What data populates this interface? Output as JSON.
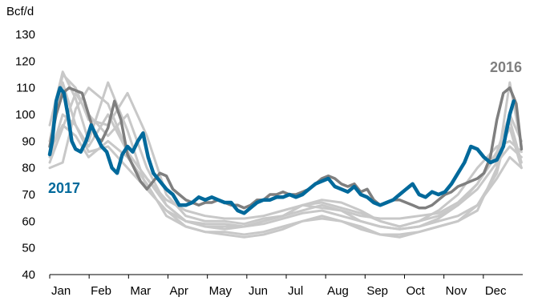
{
  "chart_data": {
    "type": "line",
    "ylabel": "Bcf/d",
    "ylim": [
      40,
      130
    ],
    "yticks": [
      40,
      50,
      60,
      70,
      80,
      90,
      100,
      110,
      120,
      130
    ],
    "months": [
      "Jan",
      "Feb",
      "Mar",
      "Apr",
      "May",
      "Jun",
      "Jul",
      "Aug",
      "Sep",
      "Oct",
      "Nov",
      "Dec"
    ],
    "xlim": [
      0,
      365
    ],
    "grid": false,
    "colors": {
      "highlight_2017": "#00699b",
      "highlight_2016": "#7f7f7f",
      "other_years": "#c8c8c8"
    },
    "series": [
      {
        "name": "2017",
        "label_color": "#00699b",
        "x": [
          0,
          2,
          5,
          8,
          11,
          14,
          17,
          20,
          24,
          28,
          32,
          36,
          40,
          44,
          48,
          52,
          56,
          60,
          64,
          68,
          72,
          76,
          80,
          85,
          90,
          95,
          100,
          105,
          110,
          115,
          120,
          125,
          130,
          135,
          140,
          145,
          150,
          155,
          160,
          165,
          170,
          175,
          180,
          185,
          190,
          195,
          200,
          205,
          210,
          215,
          220,
          225,
          230,
          235,
          240,
          245,
          250,
          255,
          260,
          265,
          270,
          275,
          280,
          285,
          290,
          295,
          300,
          305,
          310,
          315,
          320,
          325,
          330,
          335,
          340,
          345,
          350,
          355,
          358
        ],
        "values": [
          85,
          90,
          105,
          110,
          108,
          100,
          90,
          87,
          86,
          90,
          96,
          92,
          88,
          86,
          80,
          78,
          85,
          88,
          86,
          90,
          93,
          84,
          78,
          75,
          72,
          70,
          66,
          66,
          67,
          69,
          68,
          69,
          68,
          67,
          67,
          64,
          63,
          65,
          67,
          68,
          68,
          69,
          69,
          70,
          69,
          70,
          72,
          74,
          75,
          76,
          73,
          72,
          71,
          73,
          70,
          69,
          67,
          66,
          67,
          68,
          70,
          72,
          74,
          70,
          69,
          71,
          70,
          71,
          74,
          78,
          82,
          88,
          87,
          84,
          82,
          83,
          88,
          100,
          105
        ]
      },
      {
        "name": "2016",
        "label_color": "#7f7f7f",
        "x": [
          0,
          5,
          10,
          15,
          20,
          25,
          30,
          35,
          40,
          45,
          50,
          55,
          60,
          65,
          70,
          75,
          80,
          85,
          90,
          95,
          100,
          105,
          110,
          115,
          120,
          125,
          130,
          135,
          140,
          145,
          150,
          155,
          160,
          165,
          170,
          175,
          180,
          185,
          190,
          195,
          200,
          205,
          210,
          215,
          220,
          225,
          230,
          235,
          240,
          245,
          250,
          255,
          260,
          265,
          270,
          275,
          280,
          285,
          290,
          295,
          300,
          305,
          310,
          315,
          320,
          325,
          330,
          335,
          340,
          345,
          350,
          355,
          360,
          364
        ],
        "values": [
          88,
          100,
          108,
          110,
          109,
          108,
          100,
          92,
          90,
          95,
          105,
          98,
          85,
          80,
          75,
          72,
          75,
          78,
          77,
          72,
          70,
          68,
          67,
          66,
          67,
          67,
          68,
          67,
          66,
          66,
          65,
          66,
          68,
          68,
          70,
          70,
          71,
          70,
          70,
          71,
          72,
          74,
          76,
          77,
          76,
          74,
          73,
          74,
          71,
          72,
          68,
          66,
          67,
          68,
          68,
          67,
          66,
          65,
          65,
          66,
          68,
          70,
          71,
          73,
          74,
          75,
          76,
          78,
          84,
          98,
          108,
          110,
          104,
          87
        ]
      },
      {
        "name": "",
        "x": [
          0,
          10,
          20,
          30,
          45,
          60,
          75,
          90,
          105,
          120,
          135,
          150,
          165,
          180,
          195,
          210,
          225,
          240,
          255,
          270,
          285,
          300,
          315,
          330,
          345,
          355,
          364
        ],
        "values": [
          82,
          95,
          108,
          100,
          92,
          100,
          80,
          66,
          60,
          59,
          59,
          58,
          60,
          62,
          66,
          68,
          67,
          64,
          60,
          58,
          60,
          62,
          66,
          72,
          82,
          88,
          84
        ]
      },
      {
        "name": "",
        "x": [
          0,
          10,
          20,
          30,
          45,
          60,
          75,
          90,
          105,
          120,
          135,
          150,
          165,
          180,
          195,
          210,
          225,
          240,
          255,
          270,
          285,
          300,
          315,
          330,
          345,
          355,
          364
        ],
        "values": [
          80,
          82,
          102,
          110,
          104,
          86,
          76,
          68,
          64,
          62,
          61,
          61,
          62,
          64,
          66,
          65,
          64,
          62,
          61,
          61,
          62,
          63,
          67,
          74,
          85,
          95,
          80
        ]
      },
      {
        "name": "",
        "x": [
          0,
          10,
          20,
          30,
          45,
          60,
          75,
          90,
          105,
          120,
          135,
          150,
          165,
          180,
          195,
          210,
          225,
          240,
          255,
          270,
          285,
          300,
          315,
          330,
          345,
          355,
          364
        ],
        "values": [
          90,
          115,
          110,
          98,
          96,
          108,
          92,
          70,
          62,
          60,
          60,
          59,
          61,
          62,
          64,
          66,
          64,
          60,
          58,
          57,
          58,
          60,
          62,
          66,
          78,
          98,
          82
        ]
      },
      {
        "name": "",
        "x": [
          0,
          10,
          20,
          30,
          45,
          60,
          75,
          90,
          105,
          120,
          135,
          150,
          165,
          180,
          195,
          210,
          225,
          240,
          255,
          270,
          285,
          300,
          315,
          330,
          345,
          355,
          364
        ],
        "values": [
          96,
          116,
          106,
          90,
          112,
          94,
          72,
          64,
          58,
          56,
          56,
          55,
          56,
          58,
          60,
          62,
          60,
          58,
          55,
          54,
          56,
          58,
          60,
          64,
          80,
          112,
          88
        ]
      },
      {
        "name": "",
        "x": [
          0,
          10,
          20,
          30,
          45,
          60,
          75,
          90,
          105,
          120,
          135,
          150,
          165,
          180,
          195,
          210,
          225,
          240,
          255,
          270,
          285,
          300,
          315,
          330,
          345,
          355,
          364
        ],
        "values": [
          84,
          100,
          96,
          86,
          88,
          80,
          72,
          64,
          60,
          58,
          57,
          58,
          60,
          62,
          66,
          67,
          65,
          63,
          60,
          58,
          60,
          64,
          70,
          80,
          88,
          90,
          86
        ]
      },
      {
        "name": "",
        "x": [
          0,
          10,
          20,
          30,
          45,
          60,
          75,
          90,
          105,
          120,
          135,
          150,
          165,
          180,
          195,
          210,
          225,
          240,
          255,
          270,
          285,
          300,
          315,
          330,
          345,
          355,
          364
        ],
        "values": [
          88,
          112,
          96,
          88,
          100,
          86,
          76,
          66,
          60,
          58,
          58,
          58,
          59,
          61,
          63,
          64,
          62,
          60,
          58,
          57,
          58,
          61,
          66,
          74,
          86,
          100,
          90
        ]
      },
      {
        "name": "",
        "x": [
          0,
          10,
          20,
          30,
          45,
          60,
          75,
          90,
          105,
          120,
          135,
          150,
          165,
          180,
          195,
          210,
          225,
          240,
          255,
          270,
          285,
          300,
          315,
          330,
          345,
          355,
          364
        ],
        "values": [
          86,
          96,
          92,
          84,
          90,
          84,
          74,
          62,
          58,
          56,
          55,
          54,
          55,
          57,
          60,
          61,
          60,
          57,
          55,
          55,
          56,
          58,
          60,
          66,
          76,
          84,
          80
        ]
      }
    ]
  },
  "labels": {
    "year_2017": "2017",
    "year_2016": "2016",
    "unit": "Bcf/d"
  }
}
